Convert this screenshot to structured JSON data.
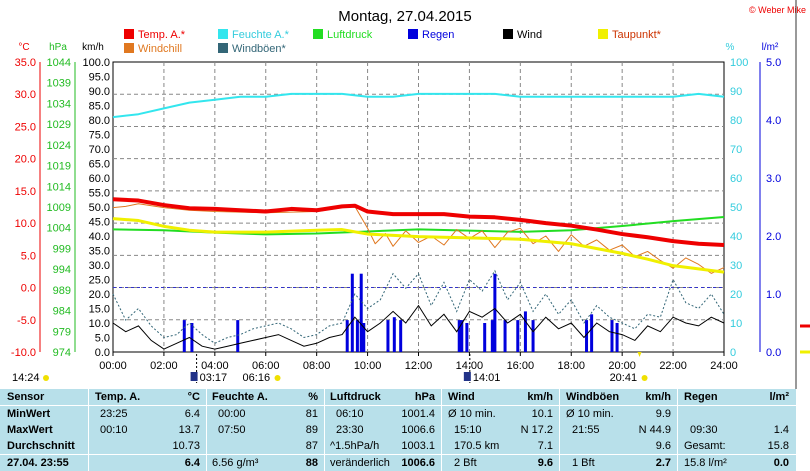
{
  "title": "Montag, 27.04.2015",
  "credit": "© Weber Mike",
  "colors": {
    "temp": "#ee0000",
    "humidity": "#33e6ee",
    "pressure": "#22dd22",
    "rain": "#0000dd",
    "wind": "#000000",
    "dewpoint": "#f0f000",
    "windchill": "#e07820",
    "gusts": "#336677"
  },
  "legend": [
    {
      "label": "Temp. A.*",
      "color": "#ee0000"
    },
    {
      "label": "Feuchte A.*",
      "color": "#33e6ee"
    },
    {
      "label": "Luftdruck",
      "color": "#22dd22"
    },
    {
      "label": "Regen",
      "color": "#0000dd"
    },
    {
      "label": "Wind",
      "color": "#000000"
    },
    {
      "label": "Taupunkt*",
      "color": "#f0f000"
    },
    {
      "label": "Windchill",
      "color": "#e07820"
    },
    {
      "label": "Windböen*",
      "color": "#336677"
    }
  ],
  "chart_data": {
    "type": "line",
    "title": "Montag, 27.04.2015",
    "x_ticks": [
      "00:00",
      "02:00",
      "04:00",
      "06:00",
      "08:00",
      "10:00",
      "12:00",
      "14:00",
      "16:00",
      "18:00",
      "20:00",
      "22:00",
      "24:00"
    ],
    "axes": {
      "temp_c": {
        "unit": "°C",
        "min": -10.0,
        "max": 35.0,
        "ticks": [
          "35.0",
          "30.0",
          "25.0",
          "20.0",
          "15.0",
          "10.0",
          "5.0",
          "0.0",
          "-5.0",
          "-10.0"
        ]
      },
      "pressure_hpa": {
        "unit": "hPa",
        "min": 974,
        "max": 1044,
        "ticks": [
          "1044",
          "1039",
          "1034",
          "1029",
          "1024",
          "1019",
          "1014",
          "1009",
          "1004",
          "999",
          "994",
          "989",
          "984",
          "979",
          "974"
        ]
      },
      "wind_kmh": {
        "unit": "km/h",
        "min": 0,
        "max": 100,
        "ticks": [
          "100.0",
          "95.0",
          "90.0",
          "85.0",
          "80.0",
          "75.0",
          "70.0",
          "65.0",
          "60.0",
          "55.0",
          "50.0",
          "45.0",
          "40.0",
          "35.0",
          "30.0",
          "25.0",
          "20.0",
          "15.0",
          "10.0",
          "5.0",
          "0.0"
        ]
      },
      "humidity_pct": {
        "unit": "%",
        "min": 0,
        "max": 100,
        "ticks": [
          "100",
          "90",
          "80",
          "70",
          "60",
          "50",
          "40",
          "30",
          "20",
          "10",
          "0"
        ]
      },
      "rain_lm2": {
        "unit": "l/m²",
        "min": 0.0,
        "max": 5.0,
        "ticks": [
          "5.0",
          "4.0",
          "3.0",
          "2.0",
          "1.0",
          "0.0"
        ]
      }
    },
    "series": [
      {
        "name": "Temp. A.*",
        "axis": "temp_c",
        "x": [
          0,
          1,
          2,
          3,
          4,
          5,
          6,
          7,
          8,
          9,
          9.5,
          10,
          11,
          12,
          13,
          14,
          15,
          16,
          17,
          18,
          19,
          20,
          21,
          22,
          23,
          24
        ],
        "values": [
          13.7,
          13.5,
          12.8,
          12.3,
          12.2,
          12.0,
          11.8,
          12.2,
          12.0,
          12.6,
          12.7,
          11.8,
          11.4,
          11.4,
          11.4,
          11.0,
          10.9,
          10.5,
          10.0,
          9.6,
          9.0,
          8.3,
          7.8,
          7.2,
          6.8,
          6.6
        ]
      },
      {
        "name": "Feuchte A.*",
        "axis": "humidity_pct",
        "x": [
          0,
          1,
          2,
          3,
          4,
          5,
          6,
          7,
          8,
          9,
          10,
          11,
          12,
          13,
          14,
          15,
          16,
          17,
          18,
          19,
          20,
          21,
          22,
          23,
          24
        ],
        "values": [
          81,
          82,
          84,
          86,
          87,
          88,
          88,
          89,
          89,
          89,
          88,
          88,
          89,
          89,
          89,
          89,
          88,
          88,
          88,
          88,
          88,
          88,
          88,
          89,
          88
        ]
      },
      {
        "name": "Luftdruck",
        "axis": "pressure_hpa",
        "x": [
          0,
          2,
          4,
          6,
          8,
          10,
          12,
          14,
          16,
          18,
          20,
          22,
          24
        ],
        "values": [
          1003.6,
          1003.4,
          1002.8,
          1002.4,
          1002.6,
          1003.1,
          1003.6,
          1003.3,
          1003.0,
          1003.4,
          1004.4,
          1005.6,
          1006.6
        ]
      },
      {
        "name": "Taupunkt*",
        "axis": "temp_c",
        "x": [
          0,
          1,
          2,
          3,
          4,
          6,
          8,
          9,
          10,
          12,
          14,
          16,
          18,
          20,
          21,
          22,
          23,
          24
        ],
        "values": [
          10.7,
          10.4,
          9.5,
          8.9,
          8.6,
          8.6,
          8.9,
          9.0,
          8.3,
          7.9,
          7.7,
          7.5,
          6.8,
          5.3,
          4.4,
          3.4,
          2.9,
          2.4
        ]
      },
      {
        "name": "Windchill",
        "axis": "temp_c",
        "x": [
          0,
          0.5,
          1,
          2,
          3,
          4,
          6,
          8,
          9,
          9.5,
          10,
          10.3,
          10.7,
          11,
          11.5,
          12,
          12.5,
          13,
          13.5,
          14,
          14.5,
          15,
          15.5,
          16,
          16.5,
          17,
          17.5,
          18,
          18.5,
          19,
          19.5,
          20,
          20.5,
          21,
          21.5,
          22,
          22.5,
          23,
          23.5,
          24
        ],
        "values": [
          12.4,
          12.6,
          13.0,
          12.4,
          12.0,
          11.8,
          11.6,
          11.8,
          12.4,
          12.6,
          9.2,
          6.8,
          8.4,
          6.4,
          8.8,
          7.0,
          8.0,
          6.6,
          9.0,
          7.6,
          8.8,
          6.2,
          8.6,
          9.2,
          6.8,
          8.0,
          5.6,
          8.2,
          6.4,
          7.4,
          5.8,
          6.6,
          4.8,
          5.6,
          4.2,
          3.0,
          4.6,
          3.6,
          2.2,
          3.1
        ]
      }
    ],
    "wind_x": [
      0,
      0.5,
      1,
      1.5,
      2,
      2.5,
      3,
      3.5,
      4,
      4.5,
      5,
      5.5,
      6,
      6.5,
      7,
      7.5,
      8,
      8.5,
      9,
      9.5,
      10,
      10.5,
      11,
      11.5,
      12,
      12.5,
      13,
      13.5,
      14,
      14.5,
      15,
      15.5,
      16,
      16.5,
      17,
      17.5,
      18,
      18.5,
      19,
      19.5,
      20,
      20.5,
      21,
      21.5,
      22,
      22.5,
      23,
      23.5,
      24
    ],
    "wind_values": [
      10,
      7,
      9,
      4,
      1,
      3,
      5,
      2,
      1,
      2,
      3,
      4,
      5,
      6,
      4,
      2,
      3,
      5,
      6,
      12,
      7,
      10,
      14,
      10,
      16,
      9,
      13,
      7,
      14,
      12,
      15,
      10,
      13,
      7,
      12,
      8,
      10,
      5,
      10,
      7,
      6,
      4,
      9,
      7,
      12,
      10,
      9,
      12,
      10
    ],
    "gust_values": [
      20,
      11,
      15,
      9,
      5,
      6,
      10,
      6,
      3,
      5,
      6,
      8,
      9,
      10,
      8,
      5,
      6,
      9,
      10,
      20,
      15,
      18,
      27,
      22,
      27,
      16,
      24,
      14,
      25,
      21,
      28,
      18,
      24,
      14,
      20,
      13,
      18,
      10,
      16,
      12,
      10,
      8,
      13,
      12,
      25,
      17,
      15,
      20,
      13
    ],
    "rain_x": [
      2.8,
      3.1,
      4.9,
      9.2,
      9.4,
      9.6,
      9.75,
      9.85,
      10.8,
      11.05,
      11.3,
      13.6,
      13.7,
      13.9,
      14.6,
      14.9,
      15.0,
      15.4,
      15.9,
      16.2,
      16.5,
      18.6,
      18.8,
      19.6,
      19.8
    ],
    "rain_values": [
      0.55,
      0.5,
      0.55,
      0.55,
      1.35,
      0.55,
      1.35,
      0.5,
      0.55,
      0.6,
      0.55,
      0.55,
      0.55,
      0.5,
      0.5,
      0.55,
      1.35,
      0.55,
      0.55,
      0.7,
      0.55,
      0.55,
      0.65,
      0.55,
      0.5
    ]
  },
  "events": {
    "sunrise_label": "06:16",
    "sunset_label": "20:41",
    "moonrise_label": "03:17",
    "moonset_label": "14:01",
    "left_time": "14:24"
  },
  "table": {
    "headers": {
      "sensor": "Sensor",
      "temp": "Temp. A.",
      "temp_unit": "°C",
      "hum": "Feuchte A.",
      "hum_unit": "%",
      "press": "Luftdruck",
      "press_unit": "hPa",
      "wind": "Wind",
      "wind_unit": "km/h",
      "gust": "Windböen",
      "gust_unit": "km/h",
      "rain": "Regen",
      "rain_unit": "l/m²"
    },
    "rows": [
      {
        "label": "MinWert",
        "temp_time": "23:25",
        "temp_val": "6.4",
        "hum_time": "00:00",
        "hum_val": "81",
        "press_time": "06:10",
        "press_val": "1001.4",
        "wind_time": "Ø 10 min.",
        "wind_val": "10.1",
        "gust_time": "Ø 10 min.",
        "gust_val": "9.9",
        "rain_time": "",
        "rain_val": ""
      },
      {
        "label": "MaxWert",
        "temp_time": "00:10",
        "temp_val": "13.7",
        "hum_time": "07:50",
        "hum_val": "89",
        "press_time": "23:30",
        "press_val": "1006.6",
        "wind_time": "15:10",
        "wind_val": "N 17.2",
        "gust_time": "21:55",
        "gust_val": "N 44.9",
        "rain_time": "09:30",
        "rain_val": "1.4"
      },
      {
        "label": "Durchschnitt",
        "temp_time": "",
        "temp_val": "10.73",
        "hum_time": "",
        "hum_val": "87",
        "press_time": "^1.5hPa/h",
        "press_val": "1003.1",
        "wind_time": "170.5 km",
        "wind_val": "7.1",
        "gust_time": "",
        "gust_val": "9.6",
        "rain_time": "Gesamt:",
        "rain_val": "15.8"
      },
      {
        "label": "27.04. 23:55",
        "temp_time": "",
        "temp_val": "6.4",
        "hum_time": "6.56 g/m³",
        "hum_val": "88",
        "press_time": "veränderlich",
        "press_val": "1006.6",
        "wind_time": "2 Bft",
        "wind_val": "9.6",
        "gust_time": "1 Bft",
        "gust_val": "2.7",
        "rain_time": "15.8 l/m²",
        "rain_val": "0.0"
      }
    ]
  }
}
